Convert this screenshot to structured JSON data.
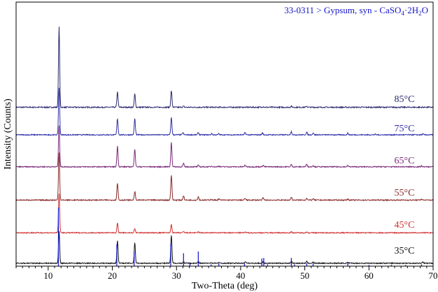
{
  "chart_data": {
    "type": "line",
    "title_parts": {
      "main": "33-0311 > Gypsum, syn - CaSO",
      "sub1": "4",
      "mid": "·2H",
      "sub2": "2",
      "end": "O"
    },
    "title_color": "#1414c8",
    "xlabel": "Two-Theta (deg)",
    "ylabel": "Intensity (Counts)",
    "xlim": [
      5,
      70
    ],
    "xticks": [
      10,
      20,
      30,
      40,
      50,
      60,
      70
    ],
    "grid": false,
    "reference_pattern": {
      "name": "33-0311 Gypsum",
      "color": "#2020d0",
      "peaks": [
        [
          11.6,
          1.0
        ],
        [
          20.7,
          0.37
        ],
        [
          23.4,
          0.25
        ],
        [
          29.1,
          0.38
        ],
        [
          31.1,
          0.22
        ],
        [
          32.1,
          0.05
        ],
        [
          33.4,
          0.25
        ],
        [
          35.4,
          0.03
        ],
        [
          36.6,
          0.05
        ],
        [
          40.6,
          0.05
        ],
        [
          43.3,
          0.13
        ],
        [
          43.6,
          0.14
        ],
        [
          44.2,
          0.03
        ],
        [
          47.9,
          0.14
        ],
        [
          48.4,
          0.03
        ],
        [
          50.3,
          0.05
        ],
        [
          51.3,
          0.05
        ],
        [
          56.7,
          0.07
        ],
        [
          60.0,
          0.02
        ],
        [
          63.5,
          0.02
        ],
        [
          65.7,
          0.02
        ],
        [
          68.2,
          0.03
        ]
      ]
    },
    "series": [
      {
        "name": "85°C",
        "label": "85°C",
        "color": "#2a2a6e",
        "baseline_counts": 0.3,
        "peaks": [
          [
            11.7,
            24.0
          ],
          [
            20.8,
            4.6
          ],
          [
            23.5,
            4.0
          ],
          [
            29.2,
            5.0
          ],
          [
            31.1,
            0.3
          ],
          [
            43.5,
            0.2
          ],
          [
            47.9,
            0.3
          ],
          [
            50.3,
            0.3
          ]
        ]
      },
      {
        "name": "75°C",
        "label": "75°C",
        "color": "#3030a8",
        "baseline_counts": 0.5,
        "peaks": [
          [
            11.7,
            17.0
          ],
          [
            20.8,
            5.8
          ],
          [
            23.5,
            5.8
          ],
          [
            29.2,
            6.2
          ],
          [
            31.0,
            0.8
          ],
          [
            33.4,
            0.8
          ],
          [
            35.5,
            0.4
          ],
          [
            36.6,
            0.4
          ],
          [
            40.7,
            0.8
          ],
          [
            43.4,
            0.7
          ],
          [
            47.9,
            1.2
          ],
          [
            50.3,
            1.0
          ],
          [
            51.3,
            0.7
          ],
          [
            56.7,
            0.6
          ],
          [
            61.0,
            0.2
          ],
          [
            68.4,
            0.3
          ]
        ]
      },
      {
        "name": "65°C",
        "label": "65°C",
        "color": "#7a2a7a",
        "baseline_counts": 0.3,
        "peaks": [
          [
            11.7,
            15.0
          ],
          [
            20.8,
            7.4
          ],
          [
            23.5,
            6.5
          ],
          [
            29.2,
            8.8
          ],
          [
            31.1,
            1.2
          ],
          [
            33.4,
            0.6
          ],
          [
            35.5,
            0.3
          ],
          [
            36.6,
            0.3
          ],
          [
            40.7,
            0.6
          ],
          [
            43.5,
            0.6
          ],
          [
            47.9,
            0.8
          ],
          [
            50.3,
            1.1
          ],
          [
            51.3,
            0.5
          ],
          [
            56.7,
            0.4
          ],
          [
            68.2,
            0.3
          ]
        ]
      },
      {
        "name": "55°C",
        "label": "55°C",
        "color": "#8a2a2a",
        "baseline_counts": 0.4,
        "peaks": [
          [
            11.7,
            17.0
          ],
          [
            20.8,
            6.0
          ],
          [
            23.5,
            3.1
          ],
          [
            29.2,
            9.0
          ],
          [
            31.1,
            1.6
          ],
          [
            33.4,
            1.2
          ],
          [
            35.4,
            0.3
          ],
          [
            36.6,
            0.4
          ],
          [
            40.7,
            0.6
          ],
          [
            43.5,
            0.8
          ],
          [
            47.9,
            1.0
          ],
          [
            50.3,
            0.7
          ],
          [
            51.3,
            0.5
          ],
          [
            56.7,
            0.4
          ],
          [
            68.2,
            0.4
          ]
        ]
      },
      {
        "name": "45°C",
        "label": "45°C",
        "color": "#d03030",
        "baseline_counts": 0.2,
        "peaks": [
          [
            11.7,
            14.0
          ],
          [
            20.8,
            3.4
          ],
          [
            23.5,
            1.5
          ],
          [
            29.2,
            3.0
          ],
          [
            31.1,
            0.4
          ],
          [
            33.4,
            0.3
          ],
          [
            40.7,
            0.2
          ],
          [
            47.9,
            0.3
          ],
          [
            50.3,
            0.3
          ]
        ]
      },
      {
        "name": "35°C",
        "label": "35°C",
        "color": "#111111",
        "baseline_counts": 0.3,
        "peaks": [
          [
            11.7,
            11.5
          ],
          [
            20.8,
            8.2
          ],
          [
            23.5,
            7.4
          ],
          [
            29.2,
            10.0
          ],
          [
            31.1,
            0.5
          ],
          [
            33.4,
            0.6
          ],
          [
            35.4,
            0.2
          ],
          [
            36.6,
            0.3
          ],
          [
            40.7,
            0.6
          ],
          [
            43.5,
            0.5
          ],
          [
            47.9,
            0.7
          ],
          [
            50.3,
            0.6
          ],
          [
            51.3,
            0.4
          ],
          [
            56.7,
            0.3
          ],
          [
            68.4,
            0.5
          ]
        ]
      }
    ]
  }
}
